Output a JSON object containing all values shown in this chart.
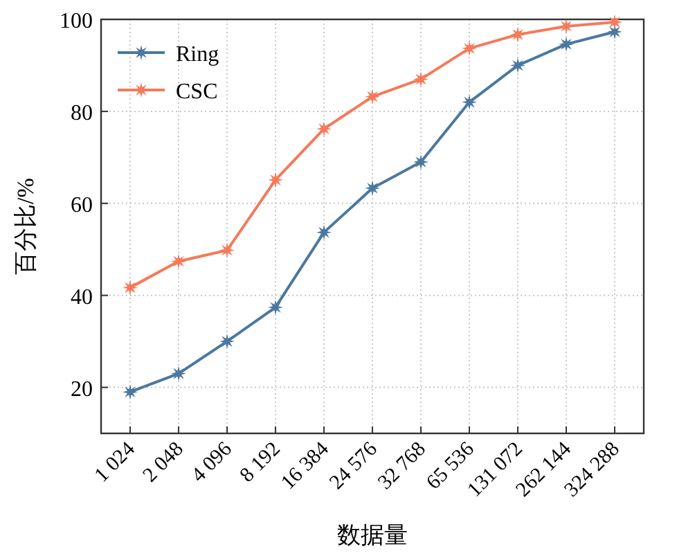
{
  "chart_data": {
    "type": "line",
    "xlabel": "数据量",
    "ylabel": "百分比/%",
    "categories": [
      "1 024",
      "2 048",
      "4 096",
      "8 192",
      "16 384",
      "24 576",
      "32 768",
      "65 536",
      "131 072",
      "262 144",
      "324 288"
    ],
    "series": [
      {
        "name": "Ring",
        "color": "#4a78a0",
        "values": [
          19,
          23,
          30,
          37.4,
          53.7,
          63.3,
          69,
          82,
          90,
          94.6,
          97.3
        ]
      },
      {
        "name": "CSC",
        "color": "#f47a5a",
        "values": [
          41.7,
          47.4,
          49.8,
          65.1,
          76.2,
          83.2,
          87,
          93.7,
          96.7,
          98.5,
          99.4
        ]
      }
    ],
    "ylim": [
      10,
      100
    ],
    "yticks": [
      20,
      40,
      60,
      80,
      100
    ],
    "grid": true,
    "legend": "top left",
    "marker": "star"
  }
}
